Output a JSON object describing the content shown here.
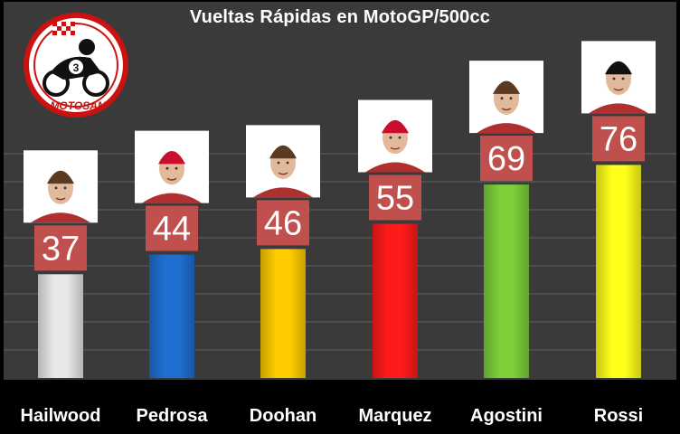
{
  "chart_data": {
    "type": "bar",
    "title": "Vueltas Rápidas en MotoGP/500cc",
    "categories": [
      "Hailwood",
      "Pedrosa",
      "Doohan",
      "Marquez",
      "Agostini",
      "Rossi"
    ],
    "values": [
      37,
      44,
      46,
      55,
      69,
      76
    ],
    "bar_colors": [
      "#e8e8e8",
      "#1f6fd1",
      "#ffcc00",
      "#ff1a1a",
      "#7ed03a",
      "#ffff1a"
    ],
    "label_box_color": "#c0504d",
    "ylim": [
      0,
      80
    ],
    "grid": true,
    "xlabel": "",
    "ylabel": ""
  },
  "logo": {
    "text": "MOTOSAN",
    "number": "3",
    "icon": "motorcycle-rider-icon"
  },
  "rider_photos": [
    {
      "icon": "rider-portrait-icon",
      "helmet_color": "#ffffff"
    },
    {
      "icon": "rider-portrait-icon",
      "helmet_color": "#c8102e"
    },
    {
      "icon": "rider-portrait-icon",
      "helmet_color": "#ffffff"
    },
    {
      "icon": "rider-portrait-icon",
      "helmet_color": "#c8102e"
    },
    {
      "icon": "rider-portrait-icon",
      "helmet_color": "#ffffff"
    },
    {
      "icon": "rider-portrait-icon",
      "helmet_color": "#111111"
    }
  ]
}
